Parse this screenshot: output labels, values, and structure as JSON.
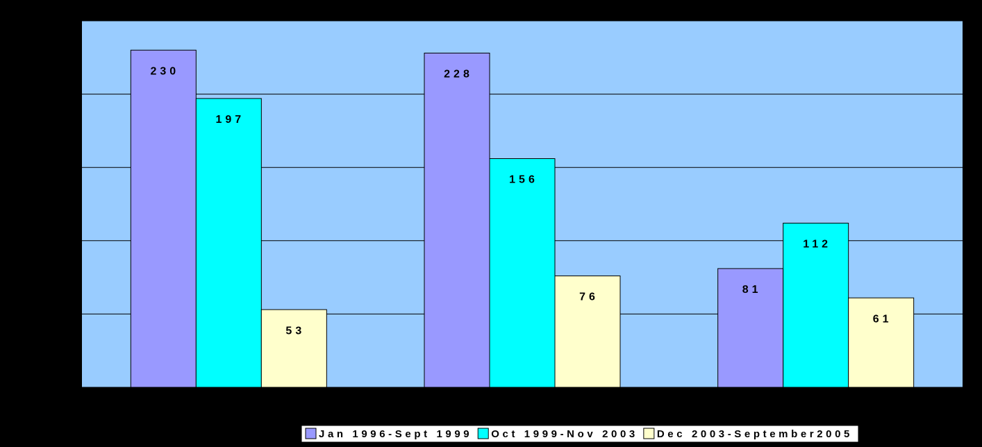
{
  "chart_data": {
    "type": "bar",
    "categories": [
      null,
      null,
      null
    ],
    "series": [
      {
        "name": "Jan 1996-Sept 1999",
        "color": "#9999ff",
        "values": [
          230,
          228,
          81
        ]
      },
      {
        "name": "Oct 1999-Nov 2003",
        "color": "#00ffff",
        "values": [
          197,
          156,
          112
        ]
      },
      {
        "name": "Dec 2003-September2005",
        "color": "#ffffcc",
        "values": [
          53,
          76,
          61
        ]
      }
    ],
    "ylim": [
      0,
      250
    ],
    "yticks": [
      0,
      50,
      100,
      150,
      200,
      250
    ],
    "grid": true,
    "plot_background": "#99ccff",
    "legend": "bottom"
  }
}
